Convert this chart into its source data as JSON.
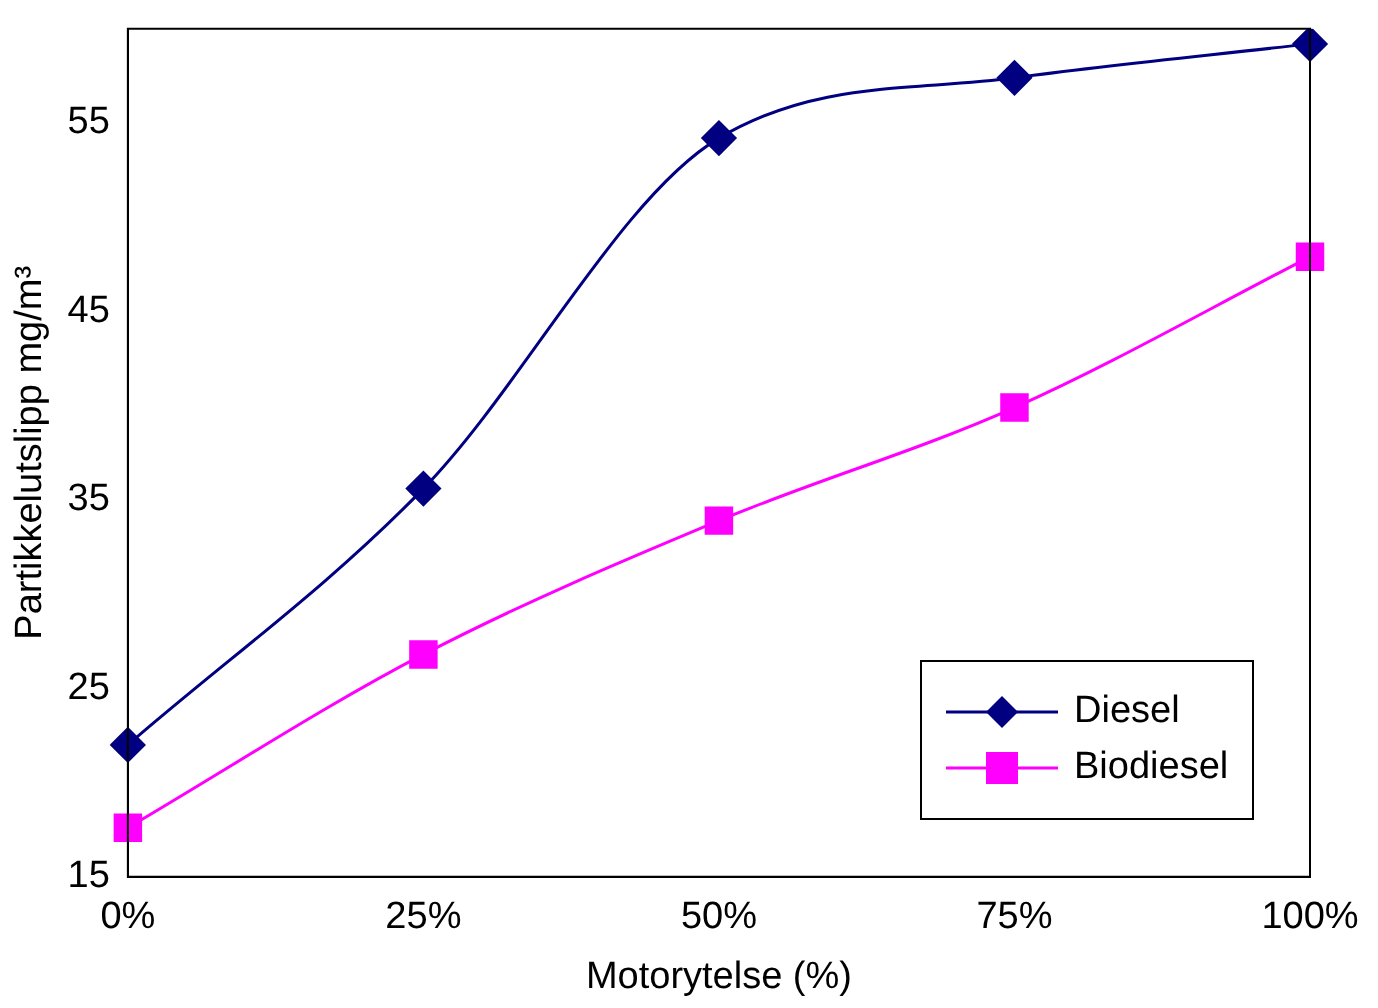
{
  "chart_data": {
    "type": "line",
    "xlabel": "Motorytelse (%)",
    "ylabel": "Partikkelutslipp mg/m³",
    "categories": [
      "0%",
      "25%",
      "50%",
      "75%",
      "100%"
    ],
    "series": [
      {
        "name": "Diesel",
        "color": "#000080",
        "values": [
          22.0,
          35.6,
          54.2,
          57.4,
          59.2
        ],
        "marker": "diamond"
      },
      {
        "name": "Biodiesel",
        "color": "#ff00ff",
        "values": [
          17.6,
          26.8,
          33.9,
          39.9,
          47.9
        ],
        "marker": "square"
      }
    ],
    "ylim": [
      15,
      60
    ],
    "yticks": [
      15,
      25,
      35,
      45,
      55
    ],
    "grid": false,
    "legend": "bottom right",
    "line_style": "solid"
  }
}
